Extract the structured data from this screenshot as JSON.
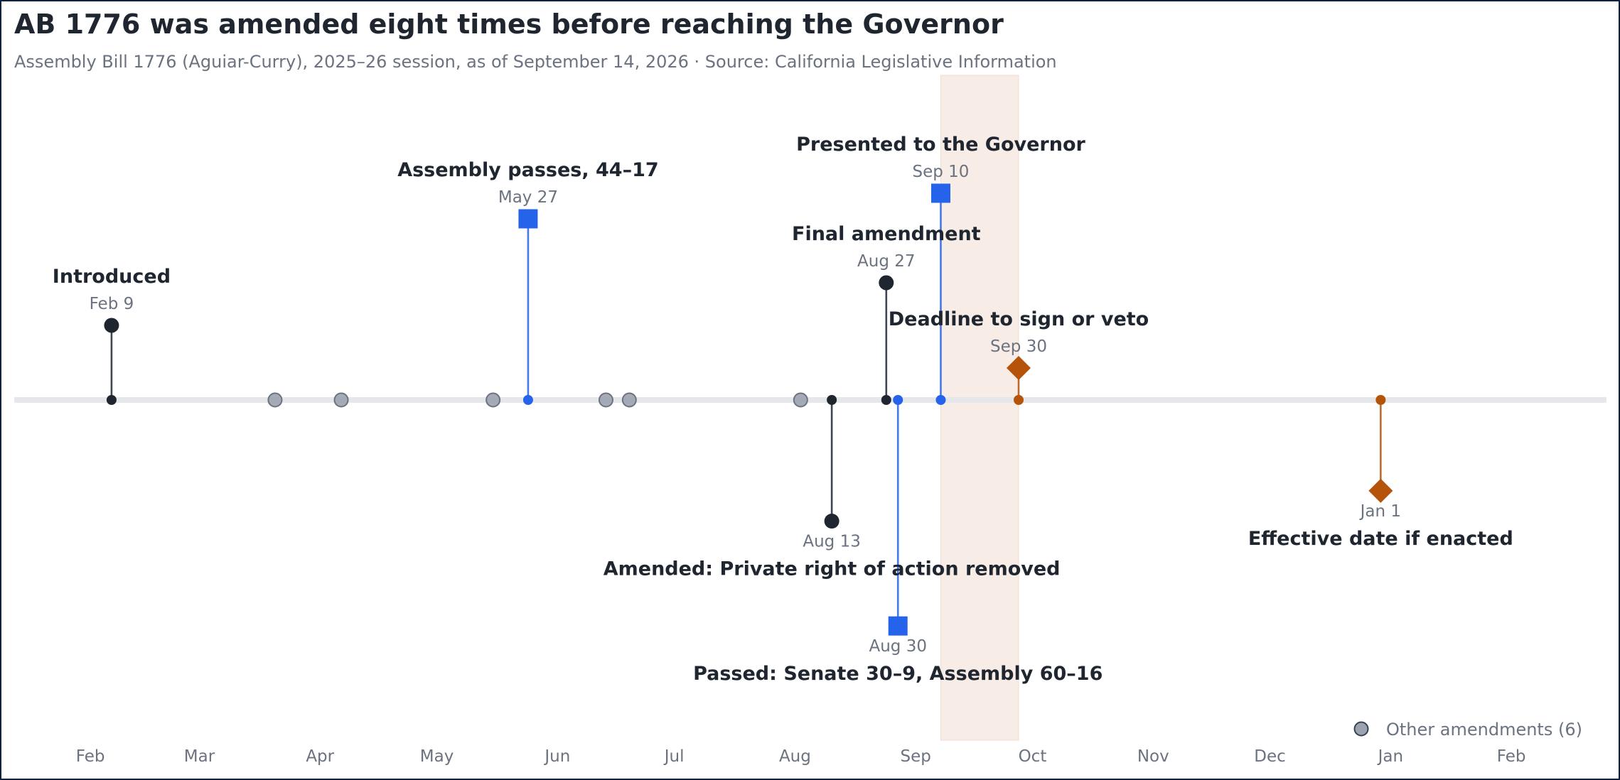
{
  "title": "AB 1776 was amended eight times before reaching the Governor",
  "subtitle": "Assembly Bill 1776 (Aguiar-Curry), 2025–26 session, as of September 14, 2026 · Source: California Legislative Information",
  "colors": {
    "frame": "#0f2340",
    "text_dark": "#1f2630",
    "text_muted": "#6b7280",
    "axis_line": "#e5e7eb",
    "neutral": "#1f2630",
    "chamber_vote": "#2563eb",
    "governor": "#b45309",
    "minor_amendment": "#9ca3af",
    "highlight_band": "#f8ede6"
  },
  "chart_data": {
    "type": "timeline",
    "x_range": [
      "2026-01-15",
      "2027-02-28"
    ],
    "month_ticks": [
      {
        "date": "2026-02-01",
        "label": "Feb"
      },
      {
        "date": "2026-03-01",
        "label": "Mar"
      },
      {
        "date": "2026-04-01",
        "label": "Apr"
      },
      {
        "date": "2026-05-01",
        "label": "May"
      },
      {
        "date": "2026-06-01",
        "label": "Jun"
      },
      {
        "date": "2026-07-01",
        "label": "Jul"
      },
      {
        "date": "2026-08-01",
        "label": "Aug"
      },
      {
        "date": "2026-09-01",
        "label": "Sep"
      },
      {
        "date": "2026-10-01",
        "label": "Oct"
      },
      {
        "date": "2026-11-01",
        "label": "Nov"
      },
      {
        "date": "2026-12-01",
        "label": "Dec"
      },
      {
        "date": "2027-01-01",
        "label": "Jan"
      },
      {
        "date": "2027-02-01",
        "label": "Feb"
      }
    ],
    "highlight_band": {
      "start": "2026-09-10",
      "end": "2026-09-30"
    },
    "events": [
      {
        "date": "2026-02-09",
        "date_label": "Feb 9",
        "label": "Introduced",
        "category": "neutral",
        "marker": "circle",
        "side": "above",
        "level": 0.35
      },
      {
        "date": "2026-05-27",
        "date_label": "May 27",
        "label": "Assembly passes, 44–17",
        "category": "chamber_vote",
        "marker": "square",
        "side": "above",
        "level": 0.85
      },
      {
        "date": "2026-08-13",
        "date_label": "Aug 13",
        "label": "Amended: Private right of action removed",
        "category": "neutral",
        "marker": "circle",
        "side": "below",
        "level": 0.52
      },
      {
        "date": "2026-08-27",
        "date_label": "Aug 27",
        "label": "Final amendment",
        "category": "neutral",
        "marker": "circle",
        "side": "above",
        "level": 0.55
      },
      {
        "date": "2026-08-30",
        "date_label": "Aug 30",
        "label": "Passed: Senate 30–9, Assembly 60–16",
        "category": "chamber_vote",
        "marker": "square",
        "side": "below",
        "level": 0.97
      },
      {
        "date": "2026-09-10",
        "date_label": "Sep 10",
        "label": "Presented to the Governor",
        "category": "chamber_vote",
        "marker": "square",
        "side": "above",
        "level": 0.97
      },
      {
        "date": "2026-09-30",
        "date_label": "Sep 30",
        "label": "Deadline to sign or veto",
        "category": "governor",
        "marker": "diamond",
        "side": "above",
        "level": 0.15
      },
      {
        "date": "2027-01-01",
        "date_label": "Jan 1",
        "label": "Effective date if enacted",
        "category": "governor",
        "marker": "diamond",
        "side": "below",
        "level": 0.39
      }
    ],
    "other_amendments": [
      "2026-03-23",
      "2026-04-09",
      "2026-05-18",
      "2026-06-16",
      "2026-06-22",
      "2026-08-05"
    ],
    "legend": {
      "label": "Other amendments (6)",
      "position": "bottom-right"
    }
  }
}
